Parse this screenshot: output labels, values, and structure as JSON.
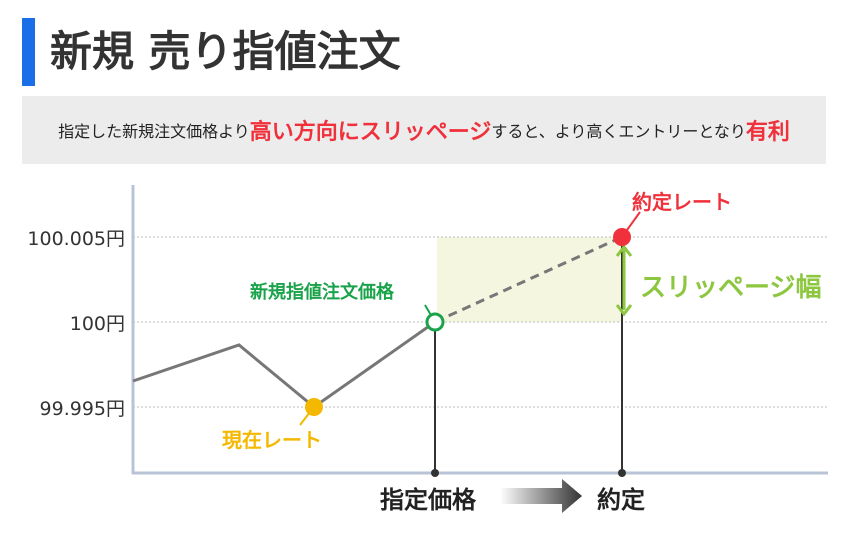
{
  "title": "新規 売り指値注文",
  "subtitle": {
    "part1": "指定した新規注文価格より",
    "highlight1": "高い方向にスリッページ",
    "part2": "すると、より高くエントリーとなり",
    "highlight2": "有利"
  },
  "y_ticks": [
    "100.005円",
    "100円",
    "99.995円"
  ],
  "labels": {
    "current_rate": "現在レート",
    "order_price": "新規指値注文価格",
    "executed_rate": "約定レート",
    "slippage_width": "スリッページ幅"
  },
  "x_axis": {
    "from": "指定価格",
    "to": "約定"
  },
  "colors": {
    "accent": "#1a6ee8",
    "red": "#f0303a",
    "green": "#1aa34a",
    "yellow": "#f5b800",
    "lime": "#8dc63f"
  }
}
